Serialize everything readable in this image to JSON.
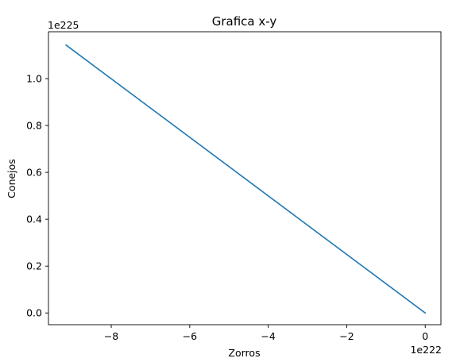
{
  "chart_data": {
    "type": "line",
    "title": "Grafica x-y",
    "xlabel": "Zorros",
    "ylabel": "Conejos",
    "x_offset_text": "1e222",
    "y_offset_text": "1e225",
    "xlim": [
      -9.6,
      0.4
    ],
    "ylim": [
      -0.05,
      1.2
    ],
    "x_ticks": [
      -8,
      -6,
      -4,
      -2,
      0
    ],
    "x_tick_labels": [
      "−8",
      "−6",
      "−4",
      "−2",
      "0"
    ],
    "y_ticks": [
      0.0,
      0.2,
      0.4,
      0.6,
      0.8,
      1.0
    ],
    "y_tick_labels": [
      "0.0",
      "0.2",
      "0.4",
      "0.6",
      "0.8",
      "1.0"
    ],
    "grid": false,
    "series": [
      {
        "color": "#1f77b4",
        "x": [
          -9.15,
          0.0
        ],
        "y": [
          1.143,
          0.0
        ]
      }
    ]
  }
}
